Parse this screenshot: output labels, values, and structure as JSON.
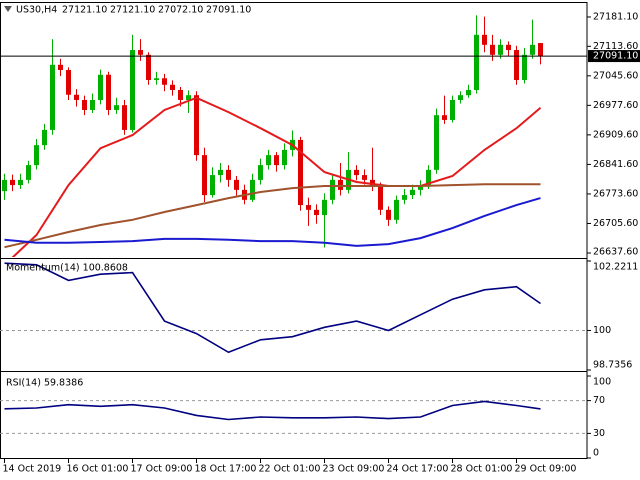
{
  "chart_data": [
    {
      "type": "candlestick",
      "title": "US30,H4",
      "header_values": [
        "27121.10",
        "27121.10",
        "27072.10",
        "27091.10"
      ],
      "categories": [
        "14 Oct 2019",
        null,
        null,
        null,
        null,
        null,
        null,
        null,
        "16 Oct 01:00",
        null,
        null,
        null,
        null,
        null,
        null,
        null,
        "17 Oct 09:00",
        null,
        null,
        null,
        null,
        null,
        null,
        null,
        "18 Oct 17:00",
        null,
        null,
        null,
        null,
        null,
        null,
        null,
        "22 Oct 01:00",
        null,
        null,
        null,
        null,
        null,
        null,
        null,
        "23 Oct 09:00",
        null,
        null,
        null,
        null,
        null,
        null,
        null,
        "24 Oct 17:00",
        null,
        null,
        null,
        null,
        null,
        null,
        null,
        "28 Oct 01:00",
        null,
        null,
        null,
        null,
        null,
        null,
        null,
        "29 Oct 09:00",
        null,
        null,
        null
      ],
      "open": [
        26780,
        26806,
        26794,
        26806,
        26840,
        26886,
        26921,
        27071,
        27059,
        27002,
        26990,
        26967,
        26990,
        27048,
        26967,
        26978,
        26921,
        27105,
        27094,
        27036,
        27040,
        27025,
        27013,
        26990,
        27001,
        26863,
        26771,
        26817,
        26829,
        26806,
        26783,
        26760,
        26806,
        26840,
        26863,
        26840,
        26875,
        26898,
        26748,
        26737,
        26725,
        26760,
        26806,
        26783,
        26829,
        26817,
        26806,
        26794,
        26737,
        26714,
        26760,
        26771,
        26783,
        26794,
        26829,
        26955,
        26944,
        26990,
        27001,
        27013,
        27140,
        27117,
        27094,
        27117,
        27105,
        27036,
        27094,
        27121.1
      ],
      "high": [
        26820,
        26818,
        26820,
        26850,
        26900,
        26935,
        27130,
        27085,
        27065,
        27015,
        27000,
        27005,
        27060,
        27055,
        26995,
        26990,
        27140,
        27130,
        27100,
        27055,
        27050,
        27035,
        27020,
        27012,
        27010,
        26880,
        26835,
        26845,
        26840,
        26815,
        26795,
        26820,
        26855,
        26875,
        26870,
        26890,
        26920,
        26905,
        26765,
        26750,
        26775,
        26820,
        26845,
        26870,
        26840,
        26830,
        26880,
        26800,
        26745,
        26770,
        26785,
        26795,
        26805,
        26840,
        26970,
        27000,
        27000,
        27010,
        27025,
        27185,
        27182,
        27140,
        27130,
        27125,
        27115,
        27110,
        27175,
        27121.1
      ],
      "low": [
        26760,
        26780,
        26785,
        26798,
        26830,
        26875,
        26910,
        27045,
        26990,
        26975,
        26955,
        26960,
        26980,
        26955,
        26958,
        26910,
        26915,
        27080,
        27025,
        27025,
        27010,
        27000,
        26975,
        26960,
        26850,
        26755,
        26765,
        26800,
        26790,
        26770,
        26750,
        26755,
        26795,
        26830,
        26825,
        26830,
        26860,
        26735,
        26700,
        26705,
        26650,
        26750,
        26770,
        26775,
        26805,
        26795,
        26780,
        26725,
        26700,
        26705,
        26750,
        26762,
        26770,
        26785,
        26820,
        26935,
        26938,
        26982,
        26995,
        27005,
        27100,
        27080,
        27085,
        27090,
        27025,
        27028,
        27085,
        27072.1
      ],
      "close": [
        26806,
        26794,
        26806,
        26840,
        26886,
        26921,
        27071,
        27059,
        27002,
        26990,
        26967,
        26990,
        27048,
        26967,
        26978,
        26921,
        27105,
        27094,
        27036,
        27040,
        27025,
        27013,
        26990,
        27001,
        26863,
        26771,
        26817,
        26829,
        26806,
        26783,
        26760,
        26806,
        26840,
        26863,
        26840,
        26875,
        26898,
        26748,
        26737,
        26725,
        26760,
        26806,
        26783,
        26829,
        26817,
        26806,
        26794,
        26737,
        26714,
        26760,
        26771,
        26783,
        26794,
        26829,
        26955,
        26944,
        26990,
        27001,
        27013,
        27140,
        27117,
        27094,
        27117,
        27105,
        27036,
        27094,
        27117,
        27091.1
      ],
      "up_color": "#00b000",
      "down_color": "#e00000",
      "ylim": [
        26628.4,
        27213.3
      ],
      "yticks": [
        {
          "value": 27181.1,
          "label": "27181.10"
        },
        {
          "value": 27113.6,
          "label": "27113.60"
        },
        {
          "value": 27045.6,
          "label": "27045.60"
        },
        {
          "value": 26977.6,
          "label": "26977.60"
        },
        {
          "value": 26909.6,
          "label": "26909.60"
        },
        {
          "value": 26841.6,
          "label": "26841.60"
        },
        {
          "value": 26773.6,
          "label": "26773.60"
        },
        {
          "value": 26705.6,
          "label": "26705.60"
        },
        {
          "value": 26637.6,
          "label": "26637.60"
        }
      ],
      "current_price": {
        "value": 27091.1,
        "label": "27091.10"
      },
      "grid": false,
      "overlays": {
        "x": [
          0,
          4,
          8,
          12,
          16,
          20,
          24,
          28,
          32,
          36,
          40,
          44,
          48,
          52,
          56,
          60,
          64,
          67
        ],
        "series": [
          {
            "color": "#e41a1c",
            "values": [
              26610,
              26679,
              26794,
              26879,
              26909,
              26967,
              26995,
              26962,
              26925,
              26886,
              26824,
              26801,
              26792,
              26792,
              26815,
              26875,
              26925,
              26972
            ]
          },
          {
            "color": "#a0522d",
            "values": [
              26651,
              26668,
              26686,
              26702,
              26714,
              26732,
              26748,
              26764,
              26778,
              26787,
              26792,
              26792,
              26792,
              26792,
              26794,
              26796,
              26796,
              26796
            ]
          },
          {
            "color": "#1a1ad0",
            "values": [
              26668,
              26661,
              26661,
              26663,
              26665,
              26670,
              26670,
              26668,
              26665,
              26665,
              26661,
              26654,
              26658,
              26672,
              26695,
              26723,
              26748,
              26764
            ]
          }
        ]
      }
    },
    {
      "type": "line",
      "label": "Momentum(14) 100.8608",
      "x": [
        0,
        4,
        8,
        12,
        16,
        20,
        24,
        28,
        32,
        36,
        40,
        44,
        48,
        52,
        56,
        60,
        64,
        67
      ],
      "values": [
        102.15,
        102.1,
        101.6,
        101.8,
        101.85,
        100.3,
        99.9,
        99.3,
        99.7,
        99.8,
        100.1,
        100.3,
        100.0,
        100.5,
        101.0,
        101.3,
        101.4,
        100.8608
      ],
      "color": "#000080",
      "ylim": [
        98.7356,
        102.2211
      ],
      "yticks": [
        102.2211,
        100,
        98.7356
      ],
      "grid": "dashed"
    },
    {
      "type": "line",
      "label": "RSI(14) 59.8386",
      "x": [
        0,
        4,
        8,
        12,
        16,
        20,
        24,
        28,
        32,
        36,
        40,
        44,
        48,
        52,
        56,
        60,
        64,
        67
      ],
      "values": [
        60,
        61,
        65,
        63,
        65,
        61,
        52,
        47,
        50,
        49,
        49,
        50,
        48,
        50,
        64,
        69,
        64,
        59.8386
      ],
      "color": "#000080",
      "ylim": [
        0,
        100
      ],
      "yticks": [
        100,
        70,
        30,
        0
      ],
      "grid": "dashed"
    }
  ]
}
